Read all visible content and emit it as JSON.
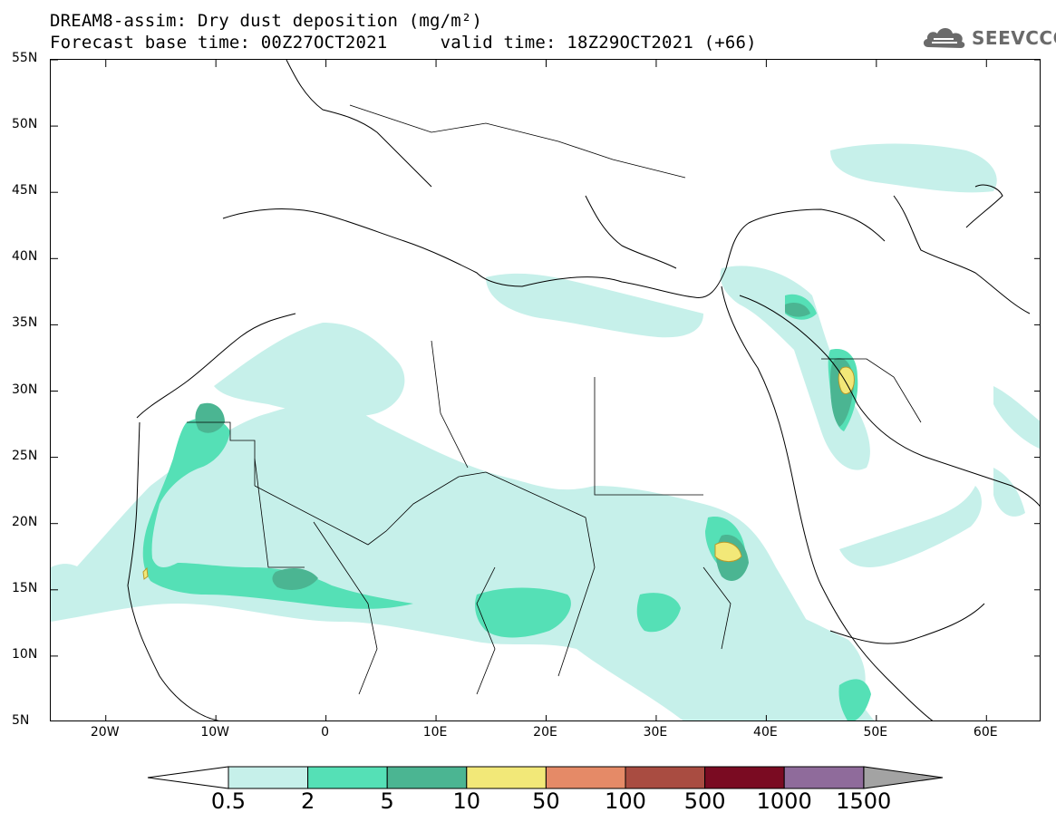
{
  "title": {
    "line1": "DREAM8-assim: Dry dust deposition (mg/m²)",
    "line2": "Forecast base time: 00Z27OCT2021     valid time: 18Z29OCT2021 (+66)"
  },
  "logo": {
    "text": "SEEVCCC",
    "icon": "cloud-icon"
  },
  "map": {
    "lon_range": [
      -25,
      65
    ],
    "lat_range": [
      5,
      55
    ],
    "lon_ticks": [
      "20W",
      "10W",
      "0",
      "10E",
      "20E",
      "30E",
      "40E",
      "50E",
      "60E"
    ],
    "lon_tick_values": [
      -20,
      -10,
      0,
      10,
      20,
      30,
      40,
      50,
      60
    ],
    "lat_ticks": [
      "55N",
      "50N",
      "45N",
      "40N",
      "35N",
      "30N",
      "25N",
      "20N",
      "15N",
      "10N",
      "5N"
    ],
    "lat_tick_values": [
      55,
      50,
      45,
      40,
      35,
      30,
      25,
      20,
      15,
      10,
      5
    ]
  },
  "colorbar": {
    "labels": [
      "0.5",
      "2",
      "5",
      "10",
      "50",
      "100",
      "500",
      "1000",
      "1500"
    ],
    "colors": [
      "#c6f0ea",
      "#55e0b6",
      "#4bb592",
      "#f2e878",
      "#e58a67",
      "#a94c41",
      "#7a0b22",
      "#8f6b9b"
    ],
    "under_color": "#ffffff",
    "over_color": "#a3a3a3"
  },
  "legend_colors": {
    "level1": "#c6f0ea",
    "level2": "#55e0b6",
    "level3": "#4bb592",
    "level4": "#f2e878"
  }
}
